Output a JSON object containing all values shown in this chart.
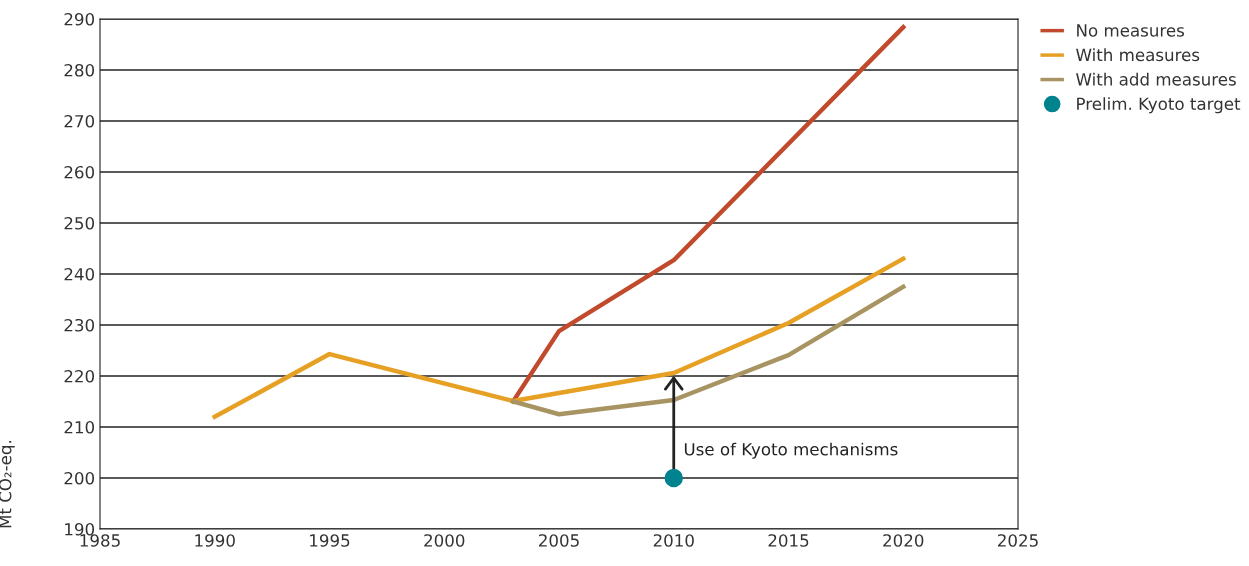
{
  "chart_data": {
    "type": "line",
    "ylabel": "Mt CO₂-eq.",
    "series": [
      {
        "name": "No measures",
        "color": "#c24a2c",
        "x": [
          2003,
          2005,
          2010,
          2020
        ],
        "values": [
          215,
          228.8,
          242.7,
          288.4
        ]
      },
      {
        "name": "With measures",
        "color": "#e6a024",
        "x": [
          1990,
          1995,
          2003,
          2010,
          2015,
          2020
        ],
        "values": [
          212,
          224.3,
          215.1,
          220.6,
          230.4,
          243
        ]
      },
      {
        "name": "With add measures",
        "color": "#a89462",
        "x": [
          2003,
          2005,
          2010,
          2015,
          2020
        ],
        "values": [
          215,
          212.5,
          215.3,
          224.1,
          237.5
        ]
      },
      {
        "name": "Prelim. Kyoto target",
        "type": "scatter",
        "marker": "circle",
        "color": "#00838f",
        "x": [
          2010
        ],
        "values": [
          200
        ]
      }
    ],
    "annotations": [
      {
        "text": "Use of Kyoto mechanisms",
        "x": 2010,
        "y": 220.6
      }
    ],
    "xlim": [
      1985,
      2025
    ],
    "xticks": [
      1985,
      1990,
      1995,
      2000,
      2005,
      2010,
      2015,
      2020,
      2025
    ],
    "ylim": [
      190,
      290
    ],
    "yticks": [
      190,
      200,
      210,
      220,
      230,
      240,
      250,
      260,
      270,
      280,
      290
    ],
    "grid": "y",
    "legend": "top right",
    "marker": "none",
    "line_style": "solid"
  }
}
